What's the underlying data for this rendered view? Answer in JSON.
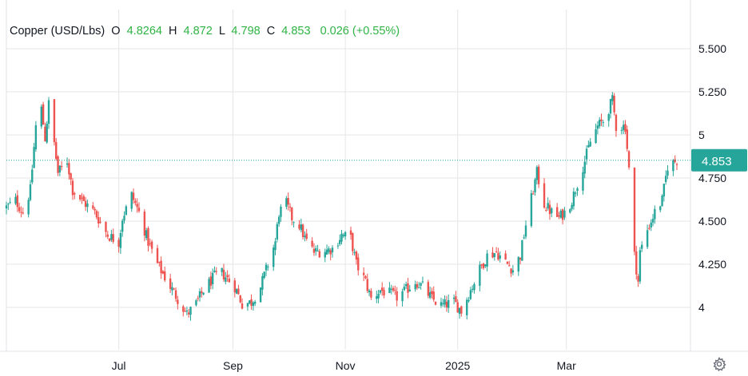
{
  "legend": {
    "symbol": "Copper (USD/Lbs)",
    "o_label": "O",
    "o_value": "4.8264",
    "h_label": "H",
    "h_value": "4.872",
    "l_label": "L",
    "l_value": "4.798",
    "c_label": "C",
    "c_value": "4.853",
    "change": "0.026 (+0.55%)"
  },
  "colors": {
    "up": "#26a69a",
    "down": "#ef5350",
    "legend_value": "#2fb344",
    "grid": "#e6e6e6",
    "last_price_bg": "#26a69a",
    "last_price_line": "#26a69a"
  },
  "icons": {
    "settings": "gear-icon"
  },
  "chart_data": {
    "type": "candlestick",
    "title": "",
    "ylim": [
      3.85,
      5.55
    ],
    "y_ticks": [
      4,
      4.25,
      4.5,
      4.75,
      5,
      5.25,
      5.5
    ],
    "y_tick_labels": [
      "4",
      "4.250",
      "4.500",
      "4.750",
      "5",
      "5.250",
      "5.500"
    ],
    "x_tick_labels": [
      "Jul",
      "Sep",
      "Nov",
      "2025",
      "Mar"
    ],
    "x_tick_dates": [
      "2024-07-01",
      "2024-09-01",
      "2024-11-01",
      "2025-01-01",
      "2025-03-01"
    ],
    "date_range": [
      "2024-05-01",
      "2025-04-30"
    ],
    "last_price": 4.853,
    "last_price_label": "4.853",
    "grid": true,
    "anchors": [
      [
        "2024-05-01",
        4.58
      ],
      [
        "2024-05-06",
        4.62
      ],
      [
        "2024-05-10",
        4.55
      ],
      [
        "2024-05-14",
        4.68
      ],
      [
        "2024-05-17",
        5.05
      ],
      [
        "2024-05-20",
        5.15
      ],
      [
        "2024-05-22",
        4.98
      ],
      [
        "2024-05-24",
        5.18
      ],
      [
        "2024-05-27",
        4.95
      ],
      [
        "2024-05-29",
        4.78
      ],
      [
        "2024-06-03",
        4.85
      ],
      [
        "2024-06-06",
        4.68
      ],
      [
        "2024-06-11",
        4.62
      ],
      [
        "2024-06-18",
        4.55
      ],
      [
        "2024-06-25",
        4.42
      ],
      [
        "2024-07-01",
        4.38
      ],
      [
        "2024-07-03",
        4.52
      ],
      [
        "2024-07-08",
        4.65
      ],
      [
        "2024-07-12",
        4.55
      ],
      [
        "2024-07-17",
        4.38
      ],
      [
        "2024-07-22",
        4.25
      ],
      [
        "2024-07-29",
        4.12
      ],
      [
        "2024-08-02",
        4.05
      ],
      [
        "2024-08-07",
        3.96
      ],
      [
        "2024-08-12",
        4.02
      ],
      [
        "2024-08-16",
        4.1
      ],
      [
        "2024-08-22",
        4.18
      ],
      [
        "2024-08-26",
        4.2
      ],
      [
        "2024-09-02",
        4.12
      ],
      [
        "2024-09-06",
        4.02
      ],
      [
        "2024-09-11",
        4.03
      ],
      [
        "2024-09-16",
        4.12
      ],
      [
        "2024-09-20",
        4.25
      ],
      [
        "2024-09-24",
        4.38
      ],
      [
        "2024-09-26",
        4.55
      ],
      [
        "2024-09-30",
        4.6
      ],
      [
        "2024-10-03",
        4.52
      ],
      [
        "2024-10-07",
        4.48
      ],
      [
        "2024-10-10",
        4.4
      ],
      [
        "2024-10-15",
        4.32
      ],
      [
        "2024-10-21",
        4.33
      ],
      [
        "2024-10-25",
        4.34
      ],
      [
        "2024-10-30",
        4.42
      ],
      [
        "2024-11-04",
        4.4
      ],
      [
        "2024-11-07",
        4.25
      ],
      [
        "2024-11-12",
        4.15
      ],
      [
        "2024-11-15",
        4.05
      ],
      [
        "2024-11-20",
        4.1
      ],
      [
        "2024-11-25",
        4.08
      ],
      [
        "2024-11-29",
        4.06
      ],
      [
        "2024-12-04",
        4.1
      ],
      [
        "2024-12-09",
        4.15
      ],
      [
        "2024-12-13",
        4.12
      ],
      [
        "2024-12-18",
        4.05
      ],
      [
        "2024-12-23",
        4.01
      ],
      [
        "2024-12-30",
        4.03
      ],
      [
        "2025-01-03",
        3.98
      ],
      [
        "2025-01-08",
        4.1
      ],
      [
        "2025-01-13",
        4.22
      ],
      [
        "2025-01-17",
        4.3
      ],
      [
        "2025-01-22",
        4.32
      ],
      [
        "2025-01-27",
        4.26
      ],
      [
        "2025-01-31",
        4.22
      ],
      [
        "2025-02-04",
        4.3
      ],
      [
        "2025-02-07",
        4.48
      ],
      [
        "2025-02-11",
        4.68
      ],
      [
        "2025-02-13",
        4.78
      ],
      [
        "2025-02-17",
        4.6
      ],
      [
        "2025-02-21",
        4.55
      ],
      [
        "2025-02-25",
        4.52
      ],
      [
        "2025-02-28",
        4.55
      ],
      [
        "2025-03-04",
        4.62
      ],
      [
        "2025-03-07",
        4.72
      ],
      [
        "2025-03-11",
        4.85
      ],
      [
        "2025-03-14",
        4.96
      ],
      [
        "2025-03-18",
        5.05
      ],
      [
        "2025-03-21",
        5.08
      ],
      [
        "2025-03-26",
        5.2
      ],
      [
        "2025-03-28",
        5.05
      ],
      [
        "2025-04-02",
        5.05
      ],
      [
        "2025-04-04",
        4.8
      ],
      [
        "2025-04-07",
        4.3
      ],
      [
        "2025-04-09",
        4.15
      ],
      [
        "2025-04-10",
        4.32
      ],
      [
        "2025-04-14",
        4.45
      ],
      [
        "2025-04-18",
        4.55
      ],
      [
        "2025-04-22",
        4.62
      ],
      [
        "2025-04-25",
        4.82
      ],
      [
        "2025-04-30",
        4.853
      ]
    ]
  }
}
